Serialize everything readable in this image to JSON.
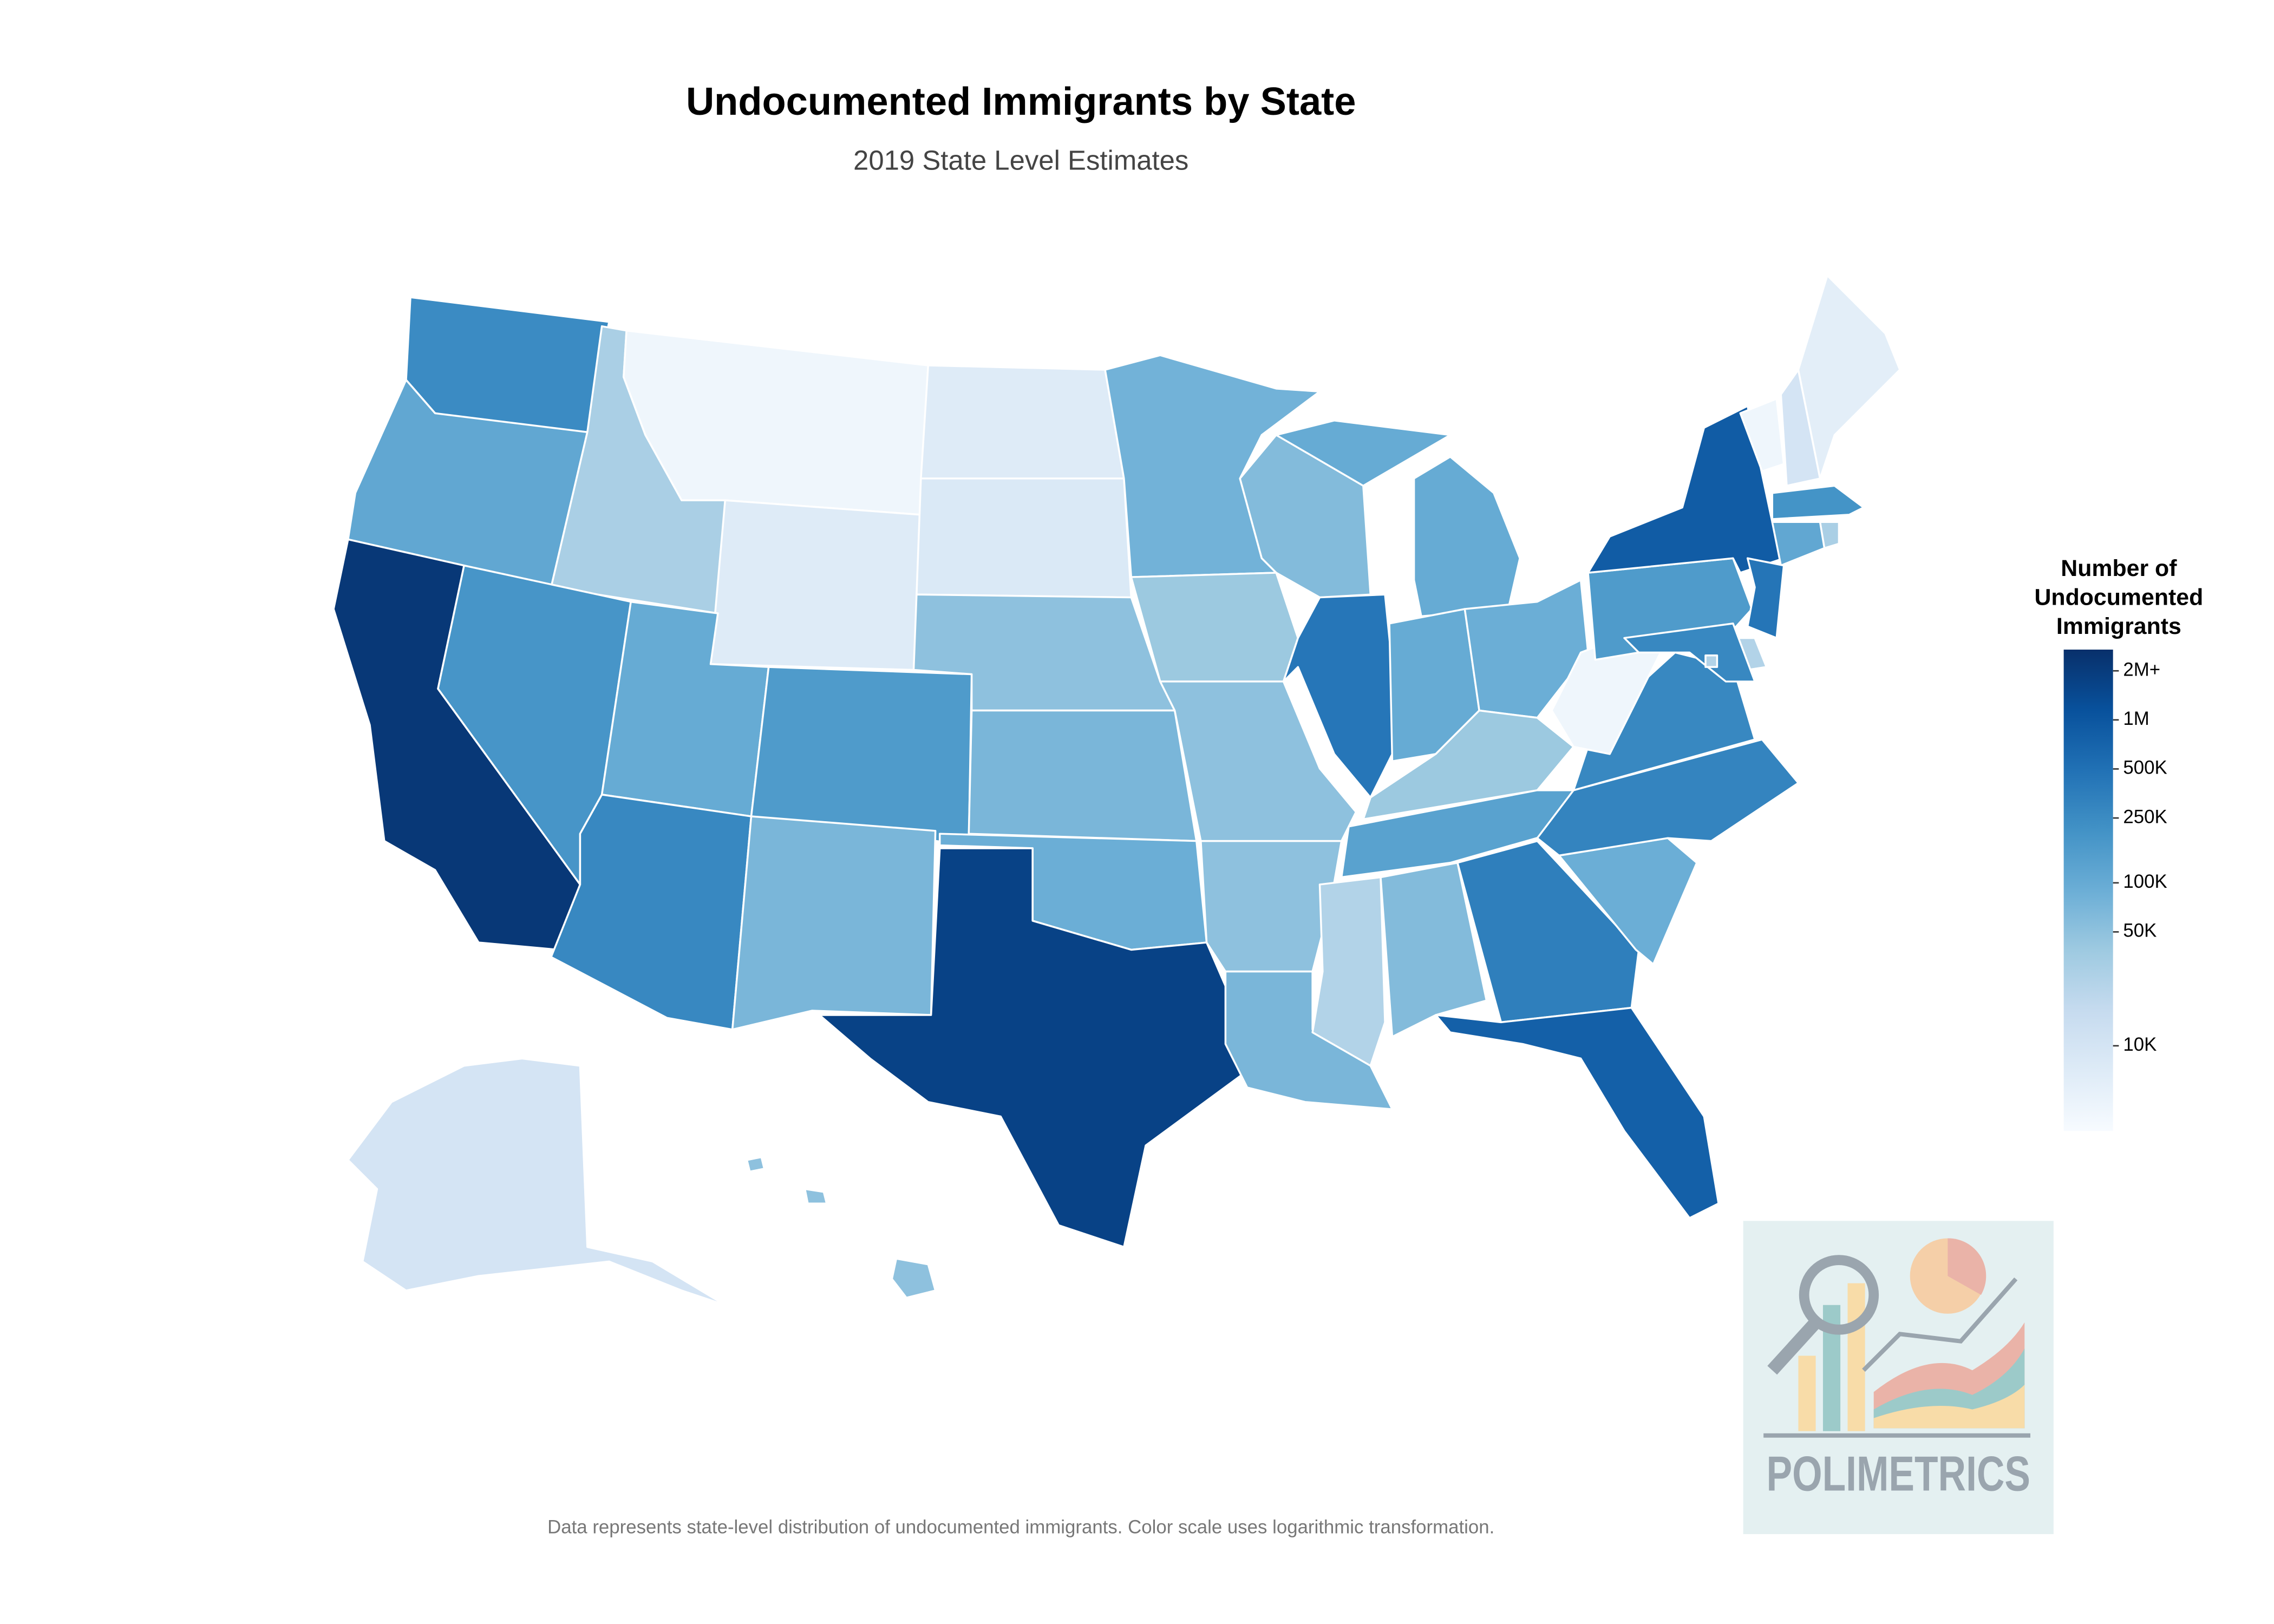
{
  "chart_data": {
    "type": "choropleth",
    "title": "Undocumented Immigrants by State",
    "subtitle": "2019 State Level Estimates",
    "values": [
      250000,
      110000,
      2200000,
      30000,
      190000,
      4000,
      7000,
      100000,
      270000,
      160000,
      70000,
      7000,
      8000,
      50000,
      70000,
      90000,
      1700000,
      80000,
      40000,
      50000,
      50000,
      70000,
      60000,
      430000,
      100000,
      100000,
      90000,
      40000,
      130000,
      25000,
      60000,
      340000,
      770000,
      90000,
      300000,
      270000,
      4000,
      160000,
      850000,
      4000,
      10000,
      6000,
      200000,
      110000,
      30000,
      440000,
      25000,
      270000,
      25000,
      10000,
      50000
    ],
    "log_scale": true,
    "colors": [
      "#f7fbff",
      "#deebf7",
      "#c6dbef",
      "#9ecae1",
      "#6baed6",
      "#4292c6",
      "#2171b5",
      "#08519c",
      "#08306b"
    ],
    "colorbar": {
      "title": [
        "Number of",
        "Undocumented",
        "Immigrants"
      ],
      "lim": [
        3000,
        2700000
      ],
      "ticks": [
        {
          "value": 2000000,
          "label": "2M+"
        },
        {
          "value": 1000000,
          "label": "1M"
        },
        {
          "value": 500000,
          "label": "500K"
        },
        {
          "value": 250000,
          "label": "250K"
        },
        {
          "value": 100000,
          "label": "100K"
        },
        {
          "value": 50000,
          "label": "50K"
        },
        {
          "value": 10000,
          "label": "10K"
        }
      ]
    },
    "note": "Data represents state-level distribution of undocumented immigrants. Color scale uses logarithmic transformation.",
    "logo": "POLIMETRICS"
  }
}
